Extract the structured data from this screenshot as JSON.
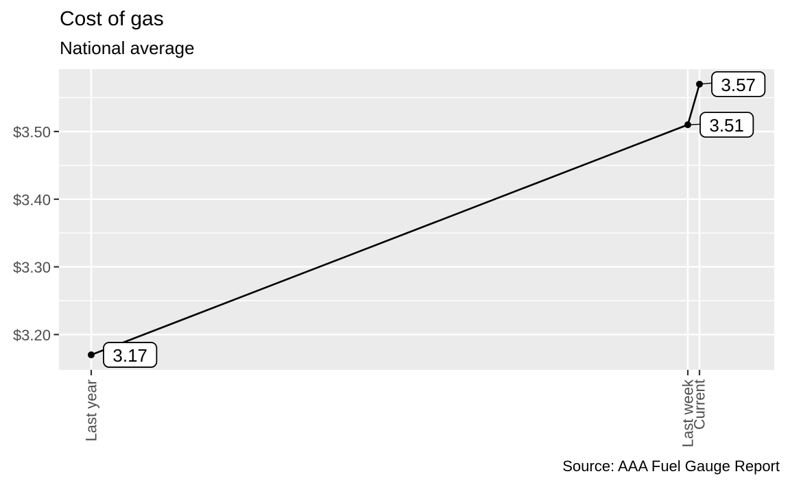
{
  "colors": {
    "panel_bg": "#EBEBEB",
    "grid": "#FFFFFF",
    "axis_text": "#4D4D4D",
    "tick_mark": "#333333",
    "series_line": "#000000",
    "point": "#000000",
    "label_bg": "#FFFFFF",
    "label_border": "#000000",
    "label_text": "#000000",
    "title_text": "#000000"
  },
  "chart_data": {
    "type": "line",
    "title": "Cost of gas",
    "subtitle": "National average",
    "caption": "Source: AAA Fuel Gauge Report",
    "categories": [
      "Last year",
      "Last week",
      "Current"
    ],
    "x_day_offsets": [
      0,
      358,
      365
    ],
    "values": [
      3.17,
      3.51,
      3.57
    ],
    "point_labels": [
      "3.17",
      "3.51",
      "3.57"
    ],
    "xlabel": "",
    "ylabel": "",
    "y_axis": {
      "tick_values": [
        3.2,
        3.3,
        3.4,
        3.5
      ],
      "tick_labels": [
        "$3.20",
        "$3.30",
        "$3.40",
        "$3.50"
      ],
      "minor_tick_values": [
        3.25,
        3.35,
        3.45,
        3.55
      ],
      "range": [
        3.148,
        3.592
      ]
    },
    "grid": "on",
    "legend": "none"
  }
}
